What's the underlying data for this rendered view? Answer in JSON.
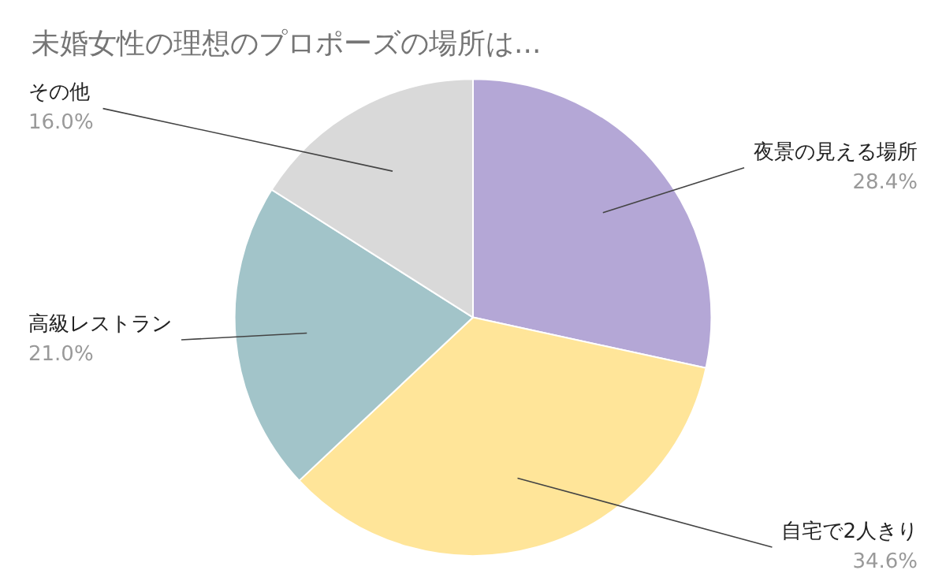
{
  "chart_data": {
    "type": "pie",
    "title": "未婚女性の理想のプロポーズの場所は...",
    "categories": [
      "夜景の見える場所",
      "自宅で2人きり",
      "高級レストラン",
      "その他"
    ],
    "values": [
      28.4,
      34.6,
      21.0,
      16.0
    ],
    "colors": [
      "#b4a7d6",
      "#ffe599",
      "#a2c4c9",
      "#d9d9d9"
    ],
    "value_labels": [
      "28.4%",
      "34.6%",
      "21.0%",
      "16.0%"
    ],
    "legend": false
  }
}
